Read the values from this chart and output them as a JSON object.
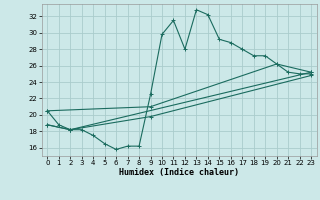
{
  "bg_color": "#cce8e8",
  "grid_color": "#aacccc",
  "line_color": "#1a6b5e",
  "xlabel": "Humidex (Indice chaleur)",
  "xlim": [
    -0.5,
    23.5
  ],
  "ylim": [
    15.0,
    33.5
  ],
  "yticks": [
    16,
    18,
    20,
    22,
    24,
    26,
    28,
    30,
    32
  ],
  "xticks": [
    0,
    1,
    2,
    3,
    4,
    5,
    6,
    7,
    8,
    9,
    10,
    11,
    12,
    13,
    14,
    15,
    16,
    17,
    18,
    19,
    20,
    21,
    22,
    23
  ],
  "line1_x": [
    0,
    1,
    2,
    3,
    4,
    5,
    6,
    7,
    8,
    9,
    10,
    11,
    12,
    13,
    14,
    15,
    16,
    17,
    18,
    19,
    20,
    21,
    22,
    23
  ],
  "line1_y": [
    20.5,
    18.8,
    18.2,
    18.2,
    17.5,
    16.5,
    15.8,
    16.2,
    16.2,
    22.5,
    29.8,
    31.5,
    28.0,
    32.8,
    32.2,
    29.2,
    28.8,
    28.0,
    27.2,
    27.2,
    26.2,
    25.2,
    25.0,
    25.0
  ],
  "line2_x": [
    0,
    2,
    23
  ],
  "line2_y": [
    18.8,
    18.2,
    25.2
  ],
  "line3_x": [
    0,
    2,
    9,
    23
  ],
  "line3_y": [
    18.8,
    18.2,
    19.8,
    24.8
  ],
  "line4_x": [
    0,
    9,
    20,
    23
  ],
  "line4_y": [
    20.5,
    21.0,
    26.2,
    25.2
  ]
}
